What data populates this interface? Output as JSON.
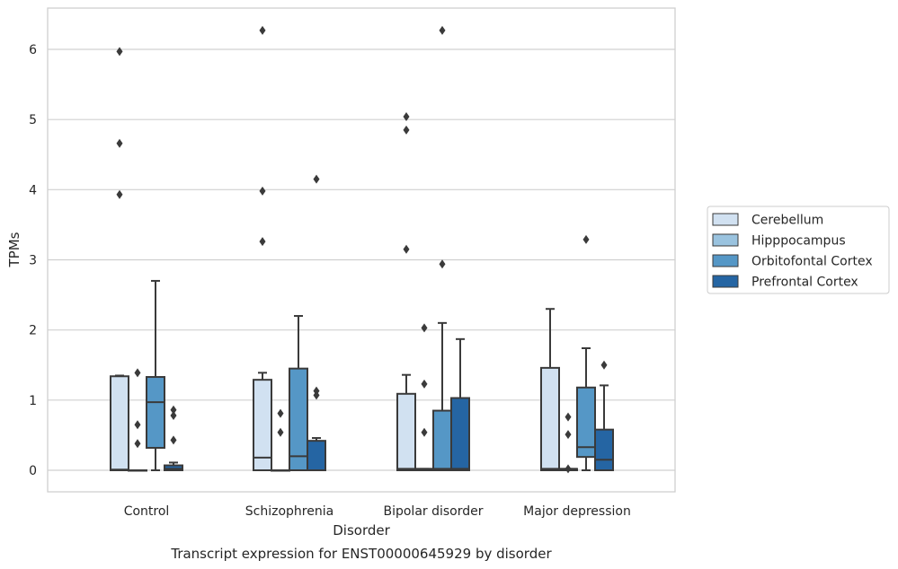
{
  "chart_data": {
    "type": "box",
    "caption": "Transcript expression for ENST00000645929 by disorder",
    "xlabel": "Disorder",
    "ylabel": "TPMs",
    "ylim": [
      -0.3,
      6.6
    ],
    "yticks": [
      0,
      1,
      2,
      3,
      4,
      5,
      6
    ],
    "grid": "horizontal",
    "legend_position": "right",
    "categories": [
      "Control",
      "Schizophrenia",
      "Bipolar disorder",
      "Major depression"
    ],
    "series": [
      {
        "name": "Cerebellum",
        "color": "#d1e1f1",
        "boxes": [
          {
            "whislo": 0,
            "q1": 0,
            "med": 0.01,
            "q3": 1.34,
            "whishi": 1.35,
            "fliers": [
              3.93,
              4.66,
              5.97
            ]
          },
          {
            "whislo": 0,
            "q1": 0,
            "med": 0.18,
            "q3": 1.29,
            "whishi": 1.39,
            "fliers": [
              3.26,
              3.98,
              6.27
            ]
          },
          {
            "whislo": 0,
            "q1": 0,
            "med": 0.02,
            "q3": 1.09,
            "whishi": 1.36,
            "fliers": [
              3.15,
              4.85,
              5.04
            ]
          },
          {
            "whislo": 0,
            "q1": 0,
            "med": 0.02,
            "q3": 1.46,
            "whishi": 2.3,
            "fliers": []
          }
        ]
      },
      {
        "name": "Hipppocampus",
        "color": "#9ac3df",
        "boxes": [
          {
            "whislo": 0,
            "q1": 0,
            "med": 0,
            "q3": 0,
            "whishi": 0,
            "fliers": [
              0.38,
              0.65,
              1.39
            ]
          },
          {
            "whislo": 0,
            "q1": 0,
            "med": 0,
            "q3": 0,
            "whishi": 0,
            "fliers": [
              0.54,
              0.81
            ]
          },
          {
            "whislo": 0,
            "q1": 0,
            "med": 0.02,
            "q3": 0.02,
            "whishi": 0.02,
            "fliers": [
              0.54,
              1.23,
              2.03
            ]
          },
          {
            "whislo": 0,
            "q1": 0,
            "med": 0.02,
            "q3": 0.02,
            "whishi": 0.02,
            "fliers": [
              0.02,
              0.51,
              0.76
            ]
          }
        ]
      },
      {
        "name": "Orbitofontal Cortex",
        "color": "#5597c6",
        "boxes": [
          {
            "whislo": 0,
            "q1": 0.32,
            "med": 0.97,
            "q3": 1.33,
            "whishi": 2.7,
            "fliers": []
          },
          {
            "whislo": 0,
            "q1": 0,
            "med": 0.2,
            "q3": 1.45,
            "whishi": 2.2,
            "fliers": []
          },
          {
            "whislo": 0,
            "q1": 0,
            "med": 0.02,
            "q3": 0.85,
            "whishi": 2.1,
            "fliers": [
              2.94,
              6.27
            ]
          },
          {
            "whislo": 0,
            "q1": 0.19,
            "med": 0.33,
            "q3": 1.18,
            "whishi": 1.74,
            "fliers": [
              3.29
            ]
          }
        ]
      },
      {
        "name": "Prefrontal Cortex",
        "color": "#2565a3",
        "boxes": [
          {
            "whislo": 0,
            "q1": 0,
            "med": 0.02,
            "q3": 0.07,
            "whishi": 0.11,
            "fliers": [
              0.43,
              0.78,
              0.86
            ]
          },
          {
            "whislo": 0,
            "q1": 0,
            "med": 0,
            "q3": 0.42,
            "whishi": 0.46,
            "fliers": [
              1.07,
              1.13,
              4.15
            ]
          },
          {
            "whislo": 0,
            "q1": 0,
            "med": 0.02,
            "q3": 1.03,
            "whishi": 1.87,
            "fliers": []
          },
          {
            "whislo": 0,
            "q1": 0,
            "med": 0.15,
            "q3": 0.58,
            "whishi": 1.21,
            "fliers": [
              1.5
            ]
          }
        ]
      }
    ]
  },
  "style": {
    "edge_color": "#3a3a3a",
    "grid_color": "#d0d0d0",
    "frame_color": "#cfcfcf"
  }
}
